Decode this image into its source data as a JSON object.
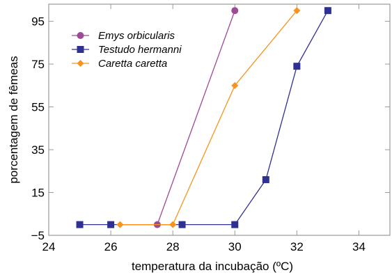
{
  "chart_data": {
    "type": "line",
    "xlabel": "temperatura da incubação (ºC)",
    "ylabel": "porcentagem de fêmeas",
    "xlim": [
      24,
      35
    ],
    "ylim": [
      -5,
      103
    ],
    "xticks": [
      24,
      26,
      28,
      30,
      32,
      34
    ],
    "yticks": [
      -5,
      15,
      35,
      55,
      75,
      95
    ],
    "x_tick_labels": [
      "24",
      "26",
      "28",
      "30",
      "32",
      "34"
    ],
    "y_tick_labels": [
      "−5",
      "15",
      "35",
      "55",
      "75",
      "95"
    ],
    "grid": false,
    "legend_position": "top-left",
    "series": [
      {
        "name": "Emys orbicularis",
        "color": "#9e4a97",
        "marker": "circle",
        "points": [
          [
            27.5,
            0
          ],
          [
            30,
            100
          ]
        ]
      },
      {
        "name": "Testudo hermanni",
        "color": "#2e3192",
        "marker": "square",
        "points": [
          [
            25,
            0
          ],
          [
            26,
            0
          ],
          [
            28.3,
            0
          ],
          [
            30,
            0
          ],
          [
            31,
            21
          ],
          [
            32,
            74
          ],
          [
            33,
            100
          ]
        ]
      },
      {
        "name": "Caretta caretta",
        "color": "#f7931e",
        "marker": "diamond",
        "points": [
          [
            26.3,
            0
          ],
          [
            28,
            0
          ],
          [
            30,
            65
          ],
          [
            32,
            100
          ]
        ]
      }
    ]
  }
}
